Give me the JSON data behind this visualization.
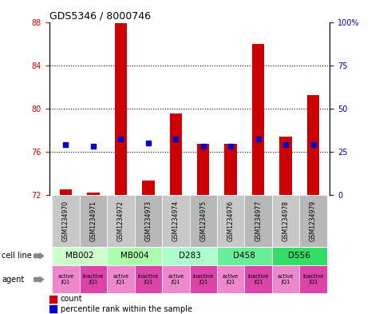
{
  "title": "GDS5346 / 8000746",
  "samples": [
    "GSM1234970",
    "GSM1234971",
    "GSM1234972",
    "GSM1234973",
    "GSM1234974",
    "GSM1234975",
    "GSM1234976",
    "GSM1234977",
    "GSM1234978",
    "GSM1234979"
  ],
  "bar_values": [
    72.5,
    72.2,
    87.9,
    73.3,
    79.5,
    76.7,
    76.7,
    86.0,
    77.4,
    81.2
  ],
  "dot_pct": [
    29,
    28,
    32,
    30,
    32,
    28,
    28,
    32,
    29,
    29
  ],
  "bar_color": "#cc0000",
  "dot_color": "#0000cc",
  "ylim_left": [
    72,
    88
  ],
  "ylim_right": [
    0,
    100
  ],
  "yticks_left": [
    72,
    76,
    80,
    84,
    88
  ],
  "yticks_right": [
    0,
    25,
    50,
    75,
    100
  ],
  "cell_lines": [
    {
      "label": "MB002",
      "cols": [
        0,
        1
      ],
      "color": "#ccffcc"
    },
    {
      "label": "MB004",
      "cols": [
        2,
        3
      ],
      "color": "#aaffaa"
    },
    {
      "label": "D283",
      "cols": [
        4,
        5
      ],
      "color": "#aaffcc"
    },
    {
      "label": "D458",
      "cols": [
        6,
        7
      ],
      "color": "#66ee99"
    },
    {
      "label": "D556",
      "cols": [
        8,
        9
      ],
      "color": "#33dd66"
    }
  ],
  "agent_labels": [
    "active\nJQ1",
    "inactive\nJQ1",
    "active\nJQ1",
    "inactive\nJQ1",
    "active\nJQ1",
    "inactive\nJQ1",
    "active\nJQ1",
    "inactive\nJQ1",
    "active\nJQ1",
    "inactive\nJQ1"
  ],
  "active_color": "#ee88cc",
  "inactive_color": "#dd44aa",
  "legend_count_color": "#cc0000",
  "legend_dot_color": "#0000cc",
  "grid_lines": [
    76,
    80,
    84
  ],
  "bar_width": 0.45
}
